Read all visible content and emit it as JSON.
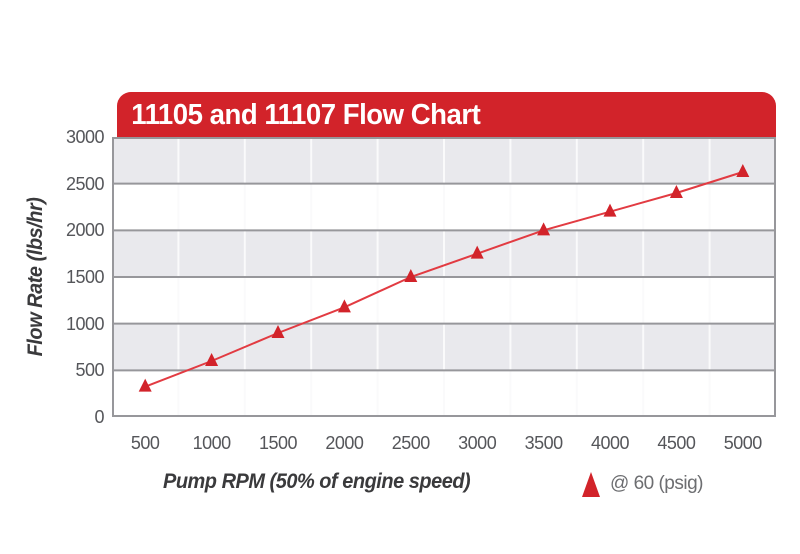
{
  "title_bar": {
    "text": "11105 and 11107 Flow Chart"
  },
  "chart_data": {
    "type": "line",
    "title": "11105 and 11107 Flow Chart",
    "xlabel": "Pump RPM (50% of engine speed)",
    "ylabel": "Flow Rate (lbs/hr)",
    "x": [
      500,
      1000,
      1500,
      2000,
      2500,
      3000,
      3500,
      4000,
      4500,
      5000
    ],
    "series": [
      {
        "name": "@ 60 (psig)",
        "marker": "triangle-up",
        "color": "#d2232a",
        "values": [
          325,
          600,
          900,
          1175,
          1500,
          1750,
          2000,
          2200,
          2400,
          2625
        ]
      }
    ],
    "ylim": [
      0,
      3000
    ],
    "y_ticks": [
      0,
      500,
      1000,
      1500,
      2000,
      2500,
      3000
    ],
    "grid": "horizontal-every-500",
    "legend_position": "bottom-right"
  },
  "colors": {
    "accent_red": "#d2232a",
    "line_red": "#e23b42",
    "band_gray": "#e9e9ed",
    "band_white": "#ffffff",
    "grid_gray": "#97979b",
    "column_separator": "#fafafb",
    "tick_text": "#55565a",
    "legend_text": "#6d6e71",
    "axis_title_text": "#3a3a3c",
    "title_text": "#ffffff"
  }
}
